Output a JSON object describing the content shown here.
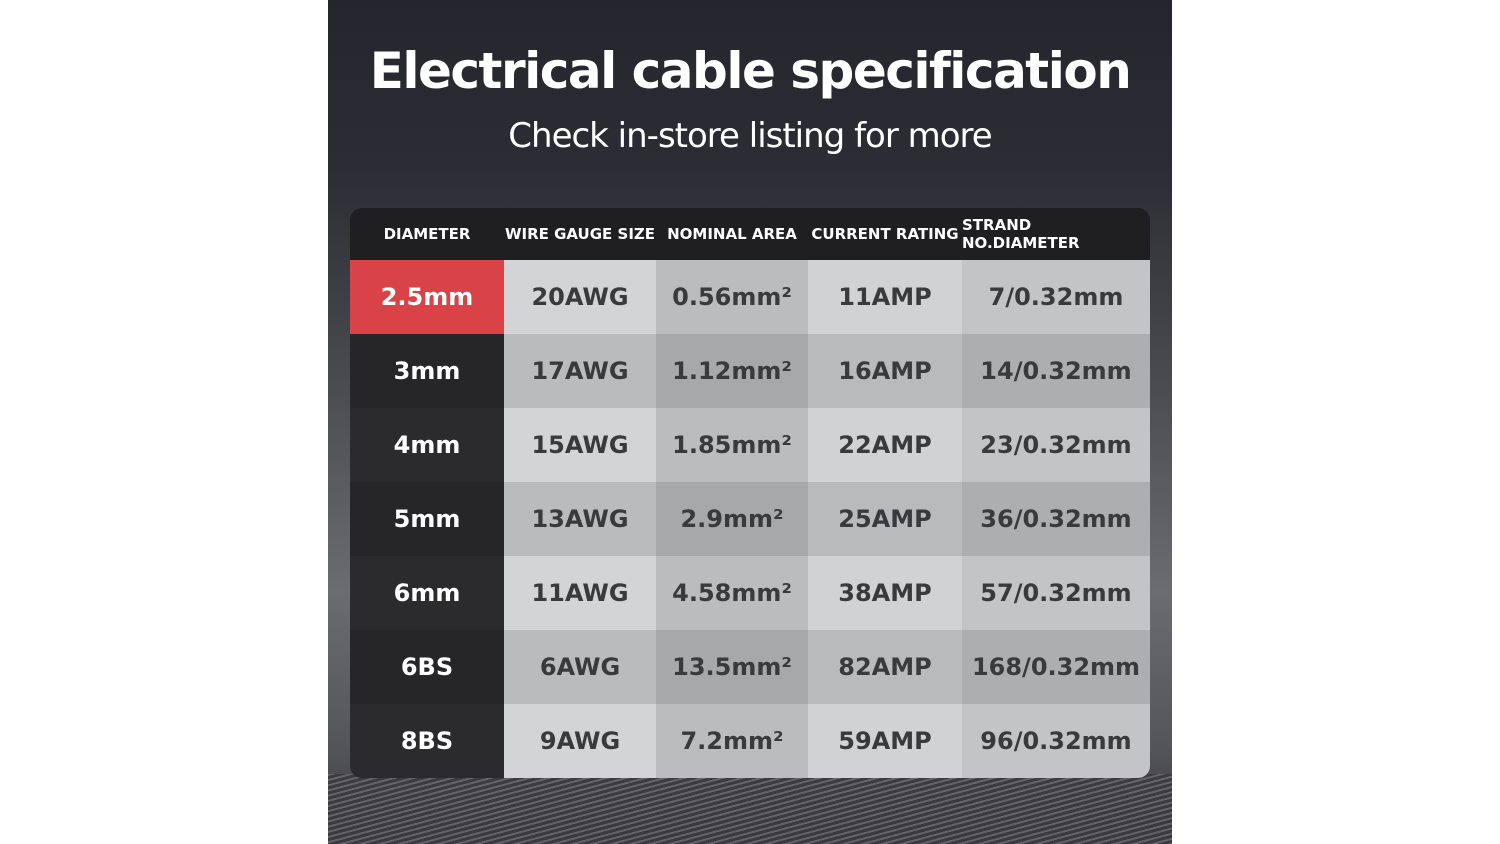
{
  "title": "Electrical cable specification",
  "subtitle": "Check in-store listing for more",
  "table": {
    "headers": [
      "DIAMETER",
      "WIRE GAUGE SIZE",
      "NOMINAL AREA",
      "CURRENT RATING",
      "STRAND NO.DIAMETER"
    ],
    "highlight_color": "#d94246",
    "rows": [
      [
        "2.5mm",
        "20AWG",
        "0.56mm²",
        "11AMP",
        "7/0.32mm"
      ],
      [
        "3mm",
        "17AWG",
        "1.12mm²",
        "16AMP",
        "14/0.32mm"
      ],
      [
        "4mm",
        "15AWG",
        "1.85mm²",
        "22AMP",
        "23/0.32mm"
      ],
      [
        "5mm",
        "13AWG",
        "2.9mm²",
        "25AMP",
        "36/0.32mm"
      ],
      [
        "6mm",
        "11AWG",
        "4.58mm²",
        "38AMP",
        "57/0.32mm"
      ],
      [
        "6BS",
        "6AWG",
        "13.5mm²",
        "82AMP",
        "168/0.32mm"
      ],
      [
        "8BS",
        "9AWG",
        "7.2mm²",
        "59AMP",
        "96/0.32mm"
      ]
    ]
  }
}
